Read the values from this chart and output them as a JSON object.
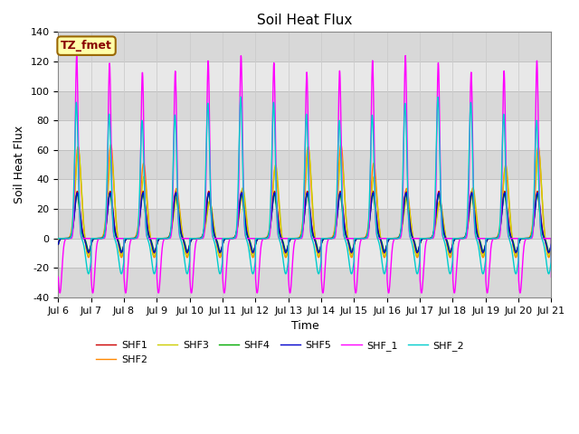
{
  "title": "Soil Heat Flux",
  "xlabel": "Time",
  "ylabel": "Soil Heat Flux",
  "ylim": [
    -40,
    140
  ],
  "n_days": 15,
  "points_per_day": 144,
  "xtick_labels": [
    "Jul 6",
    "Jul 7",
    "Jul 8",
    "Jul 9",
    "Jul 10",
    "Jul 11",
    "Jul 12",
    "Jul 13",
    "Jul 14",
    "Jul 15",
    "Jul 16",
    "Jul 17",
    "Jul 18",
    "Jul 19",
    "Jul 20",
    "Jul 21"
  ],
  "yticks": [
    -40,
    -20,
    0,
    20,
    40,
    60,
    80,
    100,
    120,
    140
  ],
  "legend_entries": [
    "SHF1",
    "SHF2",
    "SHF3",
    "SHF4",
    "SHF5",
    "SHF_1",
    "SHF_2"
  ],
  "colors": {
    "SHF1": "#cc0000",
    "SHF2": "#ff8800",
    "SHF3": "#cccc00",
    "SHF4": "#00aa00",
    "SHF5": "#0000cc",
    "SHF_1": "#ff00ff",
    "SHF_2": "#00cccc"
  },
  "annotation_text": "TZ_fmet",
  "annotation_bg": "#ffffaa",
  "annotation_border": "#996600",
  "band_colors": [
    "#d8d8d8",
    "#e8e8e8"
  ],
  "band_edges": [
    -40,
    -20,
    0,
    20,
    40,
    60,
    80,
    100,
    120,
    140
  ]
}
